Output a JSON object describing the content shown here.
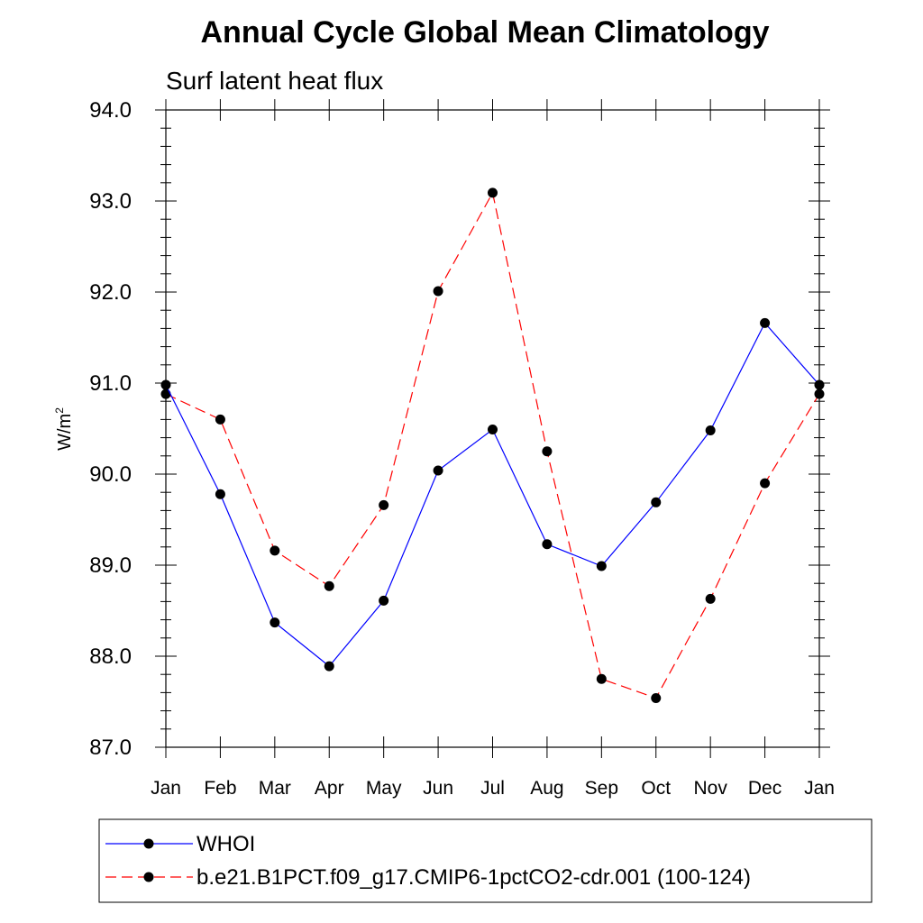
{
  "chart_data": {
    "type": "line",
    "title": "Annual Cycle Global Mean Climatology",
    "subtitle": "Surf latent heat flux",
    "ylabel": "W/m",
    "ylabel_superscript": "2",
    "xlabel": "",
    "ylim": [
      87.0,
      94.0
    ],
    "yticks": [
      "87.0",
      "88.0",
      "89.0",
      "90.0",
      "91.0",
      "92.0",
      "93.0",
      "94.0"
    ],
    "yminor_step": 0.2,
    "categories": [
      "Jan",
      "Feb",
      "Mar",
      "Apr",
      "May",
      "Jun",
      "Jul",
      "Aug",
      "Sep",
      "Oct",
      "Nov",
      "Dec",
      "Jan"
    ],
    "series": [
      {
        "name": "WHOI",
        "color": "#0000ff",
        "dash": "solid",
        "values": [
          90.98,
          89.78,
          88.37,
          87.89,
          88.61,
          90.04,
          90.49,
          89.23,
          88.99,
          89.69,
          90.48,
          91.66,
          90.98
        ]
      },
      {
        "name": "b.e21.B1PCT.f09_g17.CMIP6-1pctCO2-cdr.001 (100-124)",
        "color": "#ff0000",
        "dash": "dashed",
        "values": [
          90.88,
          90.6,
          89.16,
          88.77,
          89.66,
          92.01,
          93.09,
          90.25,
          87.75,
          87.54,
          88.63,
          89.9,
          90.88
        ]
      }
    ],
    "legend_position": "bottom",
    "grid": false
  }
}
